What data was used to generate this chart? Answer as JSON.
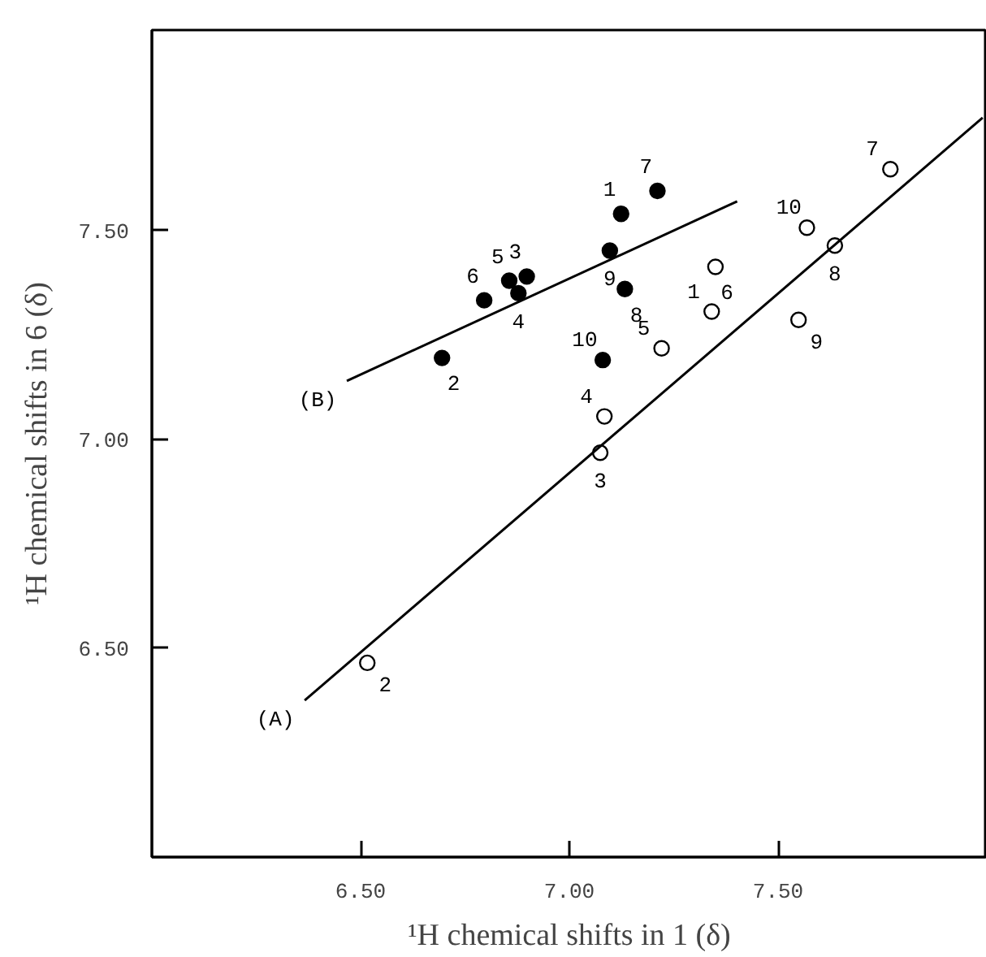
{
  "chart_data": {
    "type": "scatter",
    "xlabel": "¹H chemical shifts in 1 (δ)",
    "ylabel": "¹H chemical shifts in 6 (δ)",
    "xlim": [
      6.0,
      8.0
    ],
    "ylim": [
      6.0,
      7.98
    ],
    "xticks": [
      {
        "value": 6.5,
        "label": "6.50"
      },
      {
        "value": 7.0,
        "label": "7.00"
      },
      {
        "value": 7.5,
        "label": "7.50"
      }
    ],
    "yticks": [
      {
        "value": 6.5,
        "label": "6.50"
      },
      {
        "value": 7.0,
        "label": "7.00"
      },
      {
        "value": 7.5,
        "label": "7.50"
      }
    ],
    "grid": false,
    "marker": "circle",
    "series": [
      {
        "color": "#ffffff",
        "x": [
          7.341,
          6.516,
          7.074,
          7.084,
          7.221,
          7.35,
          7.769,
          7.636,
          7.549,
          7.569
        ],
        "values": [
          7.306,
          6.465,
          6.968,
          7.055,
          7.218,
          7.413,
          7.647,
          7.464,
          7.286,
          7.507
        ]
      },
      {
        "color": "#000000",
        "x": [
          7.124,
          6.695,
          6.898,
          6.878,
          6.856,
          6.796,
          7.211,
          7.133,
          7.097,
          7.08
        ],
        "values": [
          7.54,
          7.195,
          7.39,
          7.35,
          7.38,
          7.333,
          7.595,
          7.36,
          7.452,
          7.19
        ]
      },
      {
        "type": "line",
        "marker": "none",
        "color": "#000000",
        "x": [
          6.366,
          7.99
        ],
        "values": [
          6.375,
          7.77
        ]
      },
      {
        "type": "line",
        "marker": "none",
        "color": "#000000",
        "x": [
          6.467,
          7.402
        ],
        "values": [
          7.14,
          7.57
        ]
      }
    ],
    "annotations": [
      {
        "text": "(A)",
        "x": 6.366,
        "y": 6.375
      },
      {
        "text": "(B)",
        "x": 6.467,
        "y": 7.14
      },
      {
        "text": "1",
        "x": 7.341,
        "y": 7.306
      },
      {
        "text": "2",
        "x": 6.516,
        "y": 6.465
      },
      {
        "text": "3",
        "x": 7.074,
        "y": 6.968
      },
      {
        "text": "4",
        "x": 7.084,
        "y": 7.055
      },
      {
        "text": "5",
        "x": 7.221,
        "y": 7.218
      },
      {
        "text": "6",
        "x": 7.35,
        "y": 7.413
      },
      {
        "text": "7",
        "x": 7.769,
        "y": 7.647
      },
      {
        "text": "8",
        "x": 7.636,
        "y": 7.464
      },
      {
        "text": "9",
        "x": 7.549,
        "y": 7.286
      },
      {
        "text": "10",
        "x": 7.569,
        "y": 7.507
      },
      {
        "text": "1",
        "x": 7.124,
        "y": 7.54
      },
      {
        "text": "2",
        "x": 6.695,
        "y": 7.195
      },
      {
        "text": "3",
        "x": 6.898,
        "y": 7.39
      },
      {
        "text": "4",
        "x": 6.878,
        "y": 7.35
      },
      {
        "text": "5",
        "x": 6.856,
        "y": 7.38
      },
      {
        "text": "6",
        "x": 6.796,
        "y": 7.333
      },
      {
        "text": "7",
        "x": 7.211,
        "y": 7.595
      },
      {
        "text": "8",
        "x": 7.133,
        "y": 7.36
      },
      {
        "text": "9",
        "x": 7.097,
        "y": 7.452
      },
      {
        "text": "10",
        "x": 7.08,
        "y": 7.19
      }
    ]
  }
}
